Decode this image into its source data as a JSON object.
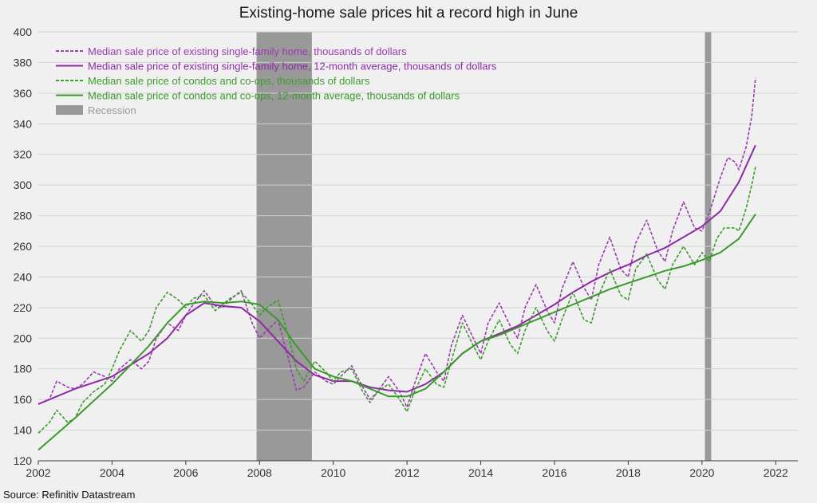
{
  "chart_data": {
    "type": "line",
    "title": "Existing-home sale prices hit a record high in June",
    "source": "Source: Refinitiv Datastream",
    "xlim": [
      2002,
      2022.6
    ],
    "ylim": [
      120,
      400
    ],
    "x_ticks": [
      2002,
      2004,
      2006,
      2008,
      2010,
      2012,
      2014,
      2016,
      2018,
      2020,
      2022
    ],
    "y_ticks": [
      120,
      140,
      160,
      180,
      200,
      220,
      240,
      260,
      280,
      300,
      320,
      340,
      360,
      380,
      400
    ],
    "grid": true,
    "legend_position": "top-left",
    "recessions": [
      {
        "start": 2007.92,
        "end": 2009.42
      },
      {
        "start": 2020.08,
        "end": 2020.25
      }
    ],
    "series": [
      {
        "name": "Median sale price of existing single-family home, thousands of dollars",
        "color": "#9b3bb0",
        "dashed": true,
        "points": [
          [
            2002.0,
            157
          ],
          [
            2002.3,
            160
          ],
          [
            2002.5,
            172
          ],
          [
            2002.8,
            168
          ],
          [
            2003.0,
            167
          ],
          [
            2003.2,
            170
          ],
          [
            2003.5,
            178
          ],
          [
            2003.8,
            175
          ],
          [
            2004.0,
            172
          ],
          [
            2004.2,
            180
          ],
          [
            2004.5,
            186
          ],
          [
            2004.8,
            180
          ],
          [
            2005.0,
            185
          ],
          [
            2005.2,
            200
          ],
          [
            2005.5,
            210
          ],
          [
            2005.8,
            205
          ],
          [
            2006.0,
            215
          ],
          [
            2006.2,
            222
          ],
          [
            2006.5,
            231
          ],
          [
            2006.8,
            221
          ],
          [
            2007.0,
            220
          ],
          [
            2007.2,
            225
          ],
          [
            2007.5,
            231
          ],
          [
            2007.8,
            210
          ],
          [
            2008.0,
            200
          ],
          [
            2008.2,
            205
          ],
          [
            2008.5,
            212
          ],
          [
            2008.8,
            185
          ],
          [
            2009.0,
            166
          ],
          [
            2009.2,
            168
          ],
          [
            2009.5,
            178
          ],
          [
            2009.8,
            172
          ],
          [
            2010.0,
            170
          ],
          [
            2010.2,
            175
          ],
          [
            2010.5,
            182
          ],
          [
            2010.8,
            168
          ],
          [
            2011.0,
            160
          ],
          [
            2011.2,
            165
          ],
          [
            2011.5,
            175
          ],
          [
            2011.8,
            165
          ],
          [
            2012.0,
            155
          ],
          [
            2012.2,
            170
          ],
          [
            2012.5,
            190
          ],
          [
            2012.8,
            178
          ],
          [
            2013.0,
            172
          ],
          [
            2013.2,
            195
          ],
          [
            2013.5,
            215
          ],
          [
            2013.8,
            200
          ],
          [
            2014.0,
            190
          ],
          [
            2014.2,
            210
          ],
          [
            2014.5,
            223
          ],
          [
            2014.8,
            208
          ],
          [
            2015.0,
            200
          ],
          [
            2015.2,
            220
          ],
          [
            2015.5,
            235
          ],
          [
            2015.8,
            218
          ],
          [
            2016.0,
            210
          ],
          [
            2016.2,
            232
          ],
          [
            2016.5,
            250
          ],
          [
            2016.8,
            233
          ],
          [
            2017.0,
            225
          ],
          [
            2017.2,
            248
          ],
          [
            2017.5,
            266
          ],
          [
            2017.8,
            245
          ],
          [
            2018.0,
            240
          ],
          [
            2018.2,
            262
          ],
          [
            2018.5,
            277
          ],
          [
            2018.8,
            257
          ],
          [
            2019.0,
            250
          ],
          [
            2019.2,
            270
          ],
          [
            2019.5,
            289
          ],
          [
            2019.8,
            272
          ],
          [
            2020.0,
            270
          ],
          [
            2020.2,
            282
          ],
          [
            2020.5,
            305
          ],
          [
            2020.7,
            318
          ],
          [
            2020.9,
            315
          ],
          [
            2021.0,
            310
          ],
          [
            2021.2,
            325
          ],
          [
            2021.35,
            345
          ],
          [
            2021.45,
            370
          ]
        ]
      },
      {
        "name": "Median sale price of existing single-family home, 12-month average, thousands of dollars",
        "color": "#8e2aa6",
        "dashed": false,
        "points": [
          [
            2002.0,
            157
          ],
          [
            2003.0,
            167
          ],
          [
            2004.0,
            175
          ],
          [
            2005.0,
            190
          ],
          [
            2005.5,
            200
          ],
          [
            2006.0,
            215
          ],
          [
            2006.5,
            223
          ],
          [
            2007.0,
            221
          ],
          [
            2007.5,
            220
          ],
          [
            2008.0,
            211
          ],
          [
            2008.5,
            198
          ],
          [
            2009.0,
            185
          ],
          [
            2009.5,
            176
          ],
          [
            2010.0,
            172
          ],
          [
            2010.5,
            172
          ],
          [
            2011.0,
            168
          ],
          [
            2011.5,
            166
          ],
          [
            2012.0,
            165
          ],
          [
            2012.5,
            170
          ],
          [
            2013.0,
            178
          ],
          [
            2013.5,
            190
          ],
          [
            2014.0,
            198
          ],
          [
            2014.5,
            203
          ],
          [
            2015.0,
            208
          ],
          [
            2015.5,
            215
          ],
          [
            2016.0,
            222
          ],
          [
            2016.5,
            230
          ],
          [
            2017.0,
            237
          ],
          [
            2017.5,
            243
          ],
          [
            2018.0,
            248
          ],
          [
            2018.5,
            254
          ],
          [
            2019.0,
            259
          ],
          [
            2019.5,
            266
          ],
          [
            2020.0,
            273
          ],
          [
            2020.5,
            283
          ],
          [
            2021.0,
            302
          ],
          [
            2021.45,
            326
          ]
        ]
      },
      {
        "name": "Median sale price of condos and co-ops, thousands of dollars",
        "color": "#3d9b2d",
        "dashed": true,
        "points": [
          [
            2002.0,
            138
          ],
          [
            2002.3,
            145
          ],
          [
            2002.5,
            153
          ],
          [
            2002.8,
            145
          ],
          [
            2003.0,
            148
          ],
          [
            2003.2,
            158
          ],
          [
            2003.5,
            165
          ],
          [
            2003.8,
            170
          ],
          [
            2004.0,
            180
          ],
          [
            2004.2,
            192
          ],
          [
            2004.5,
            205
          ],
          [
            2004.8,
            198
          ],
          [
            2005.0,
            205
          ],
          [
            2005.2,
            220
          ],
          [
            2005.5,
            230
          ],
          [
            2005.8,
            225
          ],
          [
            2006.0,
            220
          ],
          [
            2006.2,
            226
          ],
          [
            2006.5,
            228
          ],
          [
            2006.8,
            218
          ],
          [
            2007.0,
            222
          ],
          [
            2007.2,
            226
          ],
          [
            2007.5,
            230
          ],
          [
            2007.8,
            222
          ],
          [
            2008.0,
            215
          ],
          [
            2008.2,
            220
          ],
          [
            2008.5,
            225
          ],
          [
            2008.8,
            200
          ],
          [
            2009.0,
            180
          ],
          [
            2009.2,
            172
          ],
          [
            2009.5,
            185
          ],
          [
            2009.8,
            178
          ],
          [
            2010.0,
            172
          ],
          [
            2010.2,
            178
          ],
          [
            2010.5,
            180
          ],
          [
            2010.8,
            165
          ],
          [
            2011.0,
            158
          ],
          [
            2011.2,
            165
          ],
          [
            2011.5,
            170
          ],
          [
            2011.8,
            160
          ],
          [
            2012.0,
            152
          ],
          [
            2012.2,
            165
          ],
          [
            2012.5,
            180
          ],
          [
            2012.8,
            170
          ],
          [
            2013.0,
            168
          ],
          [
            2013.2,
            185
          ],
          [
            2013.5,
            210
          ],
          [
            2013.8,
            195
          ],
          [
            2014.0,
            186
          ],
          [
            2014.2,
            198
          ],
          [
            2014.5,
            212
          ],
          [
            2014.8,
            196
          ],
          [
            2015.0,
            190
          ],
          [
            2015.2,
            205
          ],
          [
            2015.5,
            220
          ],
          [
            2015.8,
            205
          ],
          [
            2016.0,
            198
          ],
          [
            2016.2,
            212
          ],
          [
            2016.5,
            230
          ],
          [
            2016.8,
            212
          ],
          [
            2017.0,
            210
          ],
          [
            2017.2,
            228
          ],
          [
            2017.5,
            245
          ],
          [
            2017.8,
            228
          ],
          [
            2018.0,
            225
          ],
          [
            2018.2,
            245
          ],
          [
            2018.5,
            255
          ],
          [
            2018.8,
            238
          ],
          [
            2019.0,
            232
          ],
          [
            2019.2,
            248
          ],
          [
            2019.5,
            260
          ],
          [
            2019.8,
            248
          ],
          [
            2020.0,
            256
          ],
          [
            2020.2,
            250
          ],
          [
            2020.4,
            265
          ],
          [
            2020.6,
            272
          ],
          [
            2020.9,
            272
          ],
          [
            2021.0,
            270
          ],
          [
            2021.2,
            285
          ],
          [
            2021.35,
            300
          ],
          [
            2021.45,
            312
          ]
        ]
      },
      {
        "name": "Median sale price of condos and co-ops, 12-month average, thousands of dollars",
        "color": "#3a9a2a",
        "dashed": false,
        "points": [
          [
            2002.0,
            127
          ],
          [
            2003.0,
            148
          ],
          [
            2004.0,
            170
          ],
          [
            2005.0,
            195
          ],
          [
            2005.5,
            210
          ],
          [
            2006.0,
            222
          ],
          [
            2006.5,
            224
          ],
          [
            2007.0,
            223
          ],
          [
            2007.5,
            224
          ],
          [
            2008.0,
            222
          ],
          [
            2008.5,
            212
          ],
          [
            2009.0,
            195
          ],
          [
            2009.5,
            180
          ],
          [
            2010.0,
            175
          ],
          [
            2010.5,
            172
          ],
          [
            2011.0,
            167
          ],
          [
            2011.5,
            162
          ],
          [
            2012.0,
            162
          ],
          [
            2012.5,
            167
          ],
          [
            2013.0,
            178
          ],
          [
            2013.5,
            190
          ],
          [
            2014.0,
            198
          ],
          [
            2014.5,
            202
          ],
          [
            2015.0,
            207
          ],
          [
            2015.5,
            212
          ],
          [
            2016.0,
            217
          ],
          [
            2016.5,
            222
          ],
          [
            2017.0,
            227
          ],
          [
            2017.5,
            232
          ],
          [
            2018.0,
            236
          ],
          [
            2018.5,
            240
          ],
          [
            2019.0,
            244
          ],
          [
            2019.5,
            247
          ],
          [
            2020.0,
            251
          ],
          [
            2020.5,
            256
          ],
          [
            2021.0,
            265
          ],
          [
            2021.45,
            281
          ]
        ]
      }
    ],
    "legend": [
      {
        "label": "Median sale price of existing single-family home, thousands of dollars",
        "color": "#9b3bb0",
        "style": "dashed"
      },
      {
        "label": "Median sale price of existing single-family home, 12-month average, thousands of dollars",
        "color": "#8e2aa6",
        "style": "solid"
      },
      {
        "label": "Median sale price of condos and co-ops, thousands of dollars",
        "color": "#3d9b2d",
        "style": "dashed"
      },
      {
        "label": "Median sale price of condos and co-ops, 12-month average, thousands of dollars",
        "color": "#3a9a2a",
        "style": "solid"
      },
      {
        "label": "Recession",
        "color": "#999999",
        "style": "box"
      }
    ]
  }
}
